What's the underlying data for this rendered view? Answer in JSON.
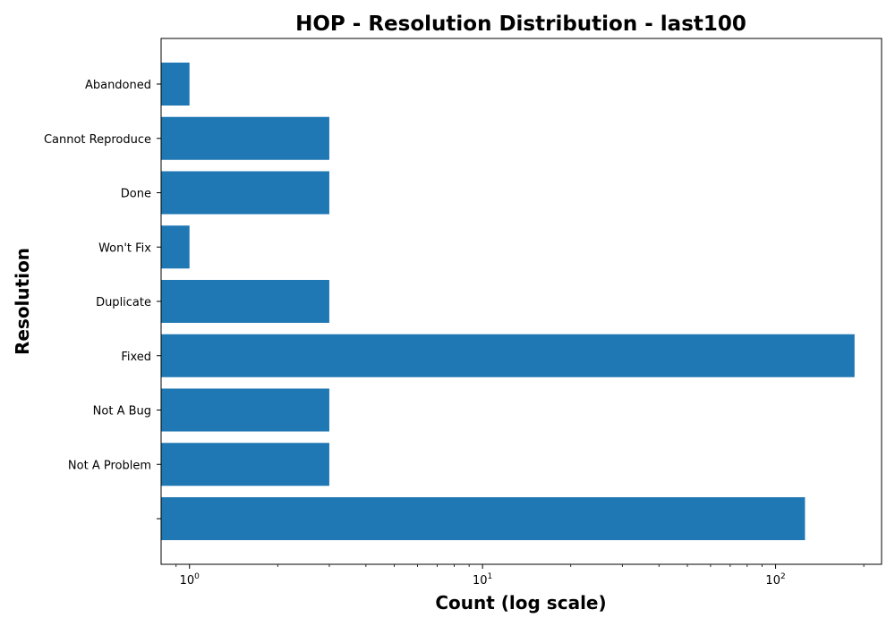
{
  "chart_data": {
    "type": "bar",
    "orientation": "horizontal",
    "title": "HOP - Resolution Distribution - last100",
    "xlabel": "Count (log scale)",
    "ylabel": "Resolution",
    "x_scale": "log",
    "xlim": [
      0.8,
      230
    ],
    "x_ticks": [
      {
        "value": 1,
        "base": "10",
        "exp": "0"
      },
      {
        "value": 10,
        "base": "10",
        "exp": "1"
      },
      {
        "value": 100,
        "base": "10",
        "exp": "2"
      }
    ],
    "categories": [
      "Abandoned",
      "Cannot Reproduce",
      "Done",
      "Won't Fix",
      "Duplicate",
      "Fixed",
      "Not A Bug",
      "Not A Problem",
      ""
    ],
    "values": [
      1,
      3,
      3,
      1,
      3,
      186,
      3,
      3,
      126
    ],
    "bar_color": "#1f77b4",
    "grid": false,
    "legend": "none"
  }
}
